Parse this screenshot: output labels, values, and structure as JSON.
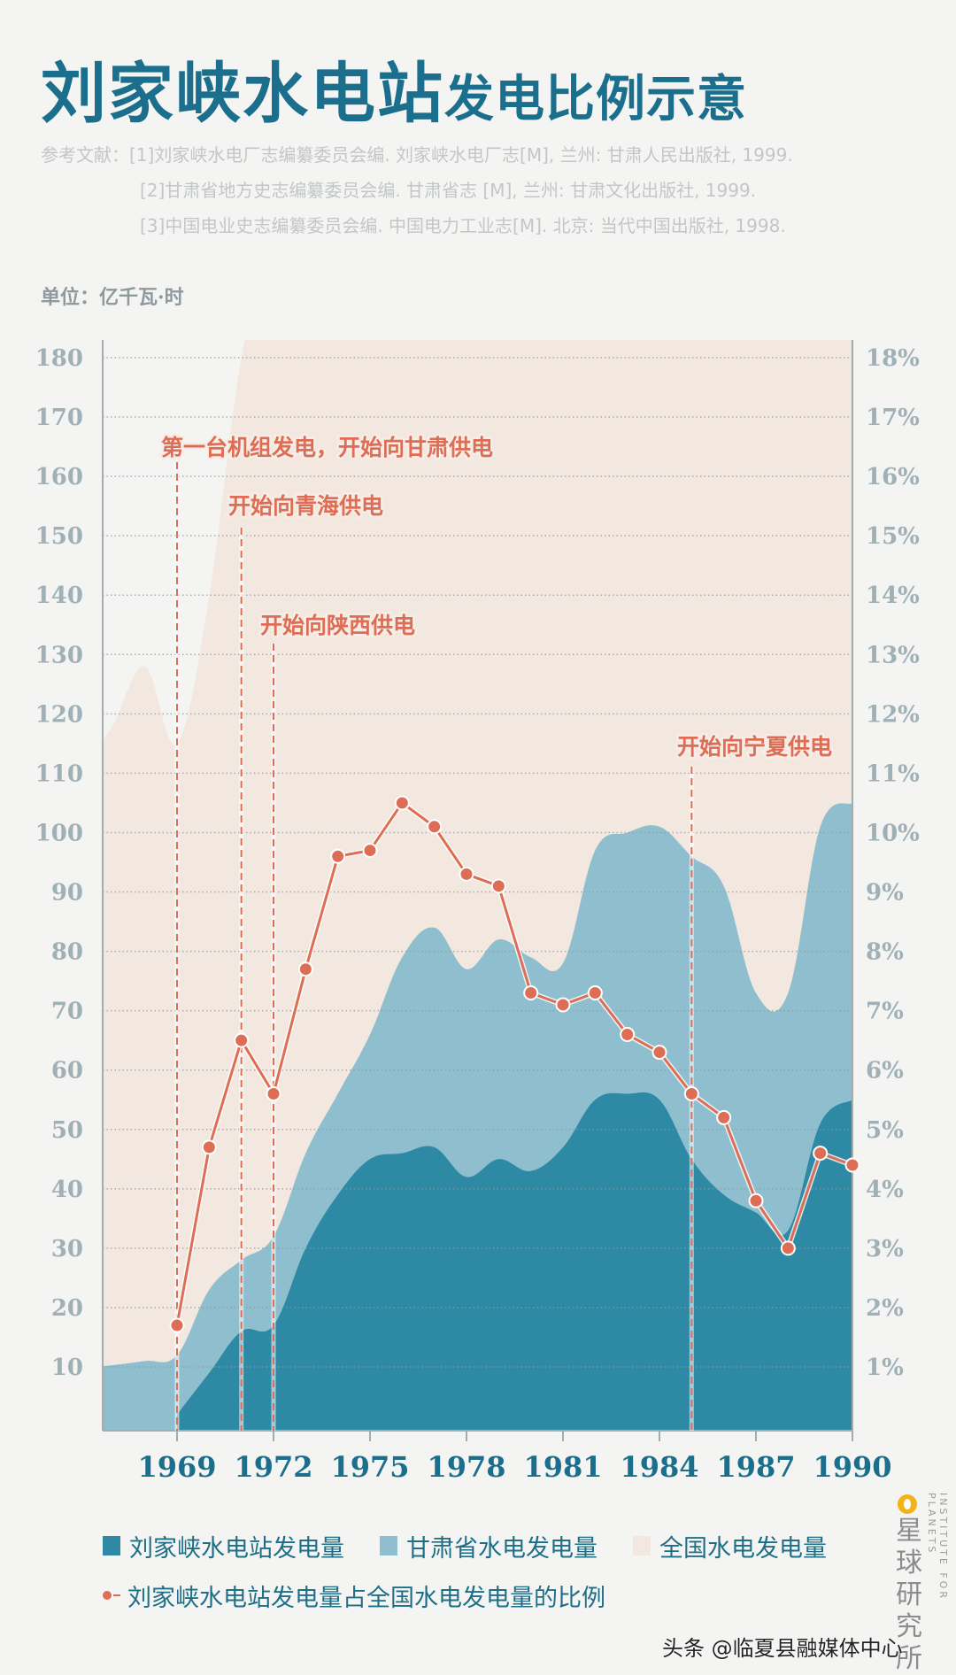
{
  "title": {
    "main": "刘家峡水电站",
    "sub": "发电比例示意"
  },
  "references": {
    "label": "参考文献：",
    "items": [
      "[1]刘家峡水电厂志编纂委员会编. 刘家峡水电厂志[M], 兰州: 甘肃人民出版社, 1999.",
      "[2]甘肃省地方史志编纂委员会编. 甘肃省志 [M], 兰州: 甘肃文化出版社, 1999.",
      "[3]中国电业史志编纂委员会编. 中国电力工业志[M]. 北京: 当代中国出版社, 1998."
    ]
  },
  "unit": "单位：亿千瓦·时",
  "colors": {
    "liujiaxia": "#2e89a5",
    "gansu": "#8fbfcf",
    "national": "#f3e8df",
    "ratio_line": "#de6d55",
    "title": "#1b6f8c",
    "axis_text": "#9fb0b6"
  },
  "chart_data": {
    "type": "area",
    "title": "刘家峡水电站发电比例示意",
    "xlabel": "",
    "ylabel": "亿千瓦·时",
    "y2label": "%",
    "x": [
      1969,
      1970,
      1971,
      1972,
      1973,
      1974,
      1975,
      1976,
      1977,
      1978,
      1979,
      1980,
      1981,
      1982,
      1983,
      1984,
      1985,
      1986,
      1987,
      1988,
      1989,
      1990
    ],
    "x_ticks": [
      "1969",
      "1972",
      "1975",
      "1978",
      "1981",
      "1984",
      "1987",
      "1990"
    ],
    "ylim": [
      0,
      180
    ],
    "y_ticks": [
      10,
      20,
      30,
      40,
      50,
      60,
      70,
      80,
      90,
      100,
      110,
      120,
      130,
      140,
      150,
      160,
      170,
      180
    ],
    "y2lim": [
      0,
      18
    ],
    "y2_ticks": [
      "1%",
      "2%",
      "3%",
      "4%",
      "5%",
      "6%",
      "7%",
      "8%",
      "9%",
      "10%",
      "11%",
      "12%",
      "13%",
      "14%",
      "15%",
      "16%",
      "17%",
      "18%"
    ],
    "grid": true,
    "series": [
      {
        "name": "刘家峡水电站发电量",
        "type": "area",
        "axis": "left",
        "values": [
          2,
          9,
          16,
          17,
          30,
          39,
          45,
          46,
          47,
          42,
          45,
          43,
          47,
          55,
          56,
          55,
          45,
          39,
          36,
          33,
          51,
          55
        ]
      },
      {
        "name": "甘肃省水电发电量",
        "type": "area",
        "axis": "left",
        "values": [
          12,
          23,
          28,
          32,
          46,
          56,
          66,
          79,
          84,
          77,
          82,
          79,
          78,
          97,
          100,
          101,
          96,
          91,
          73,
          73,
          101,
          105
        ]
      },
      {
        "name": "全国水电发电量",
        "type": "area",
        "axis": "left",
        "note": "exceeds 180 after ~1972",
        "values": [
          115,
          140,
          180,
          200,
          200,
          200,
          200,
          200,
          200,
          200,
          200,
          200,
          200,
          200,
          200,
          200,
          200,
          200,
          200,
          200,
          200,
          200
        ]
      },
      {
        "name": "刘家峡水电站发电量占全国水电发电量的比例",
        "type": "line",
        "axis": "right",
        "unit": "%",
        "values": [
          1.7,
          4.7,
          6.5,
          5.6,
          7.7,
          9.6,
          9.7,
          10.5,
          10.1,
          9.3,
          9.1,
          7.3,
          7.1,
          7.3,
          6.6,
          6.3,
          5.6,
          5.2,
          3.8,
          3.0,
          4.6,
          4.4
        ]
      }
    ],
    "annotations": [
      {
        "text": "第一台机组发电，开始向甘肃供电",
        "year": 1969
      },
      {
        "text": "开始向青海供电",
        "year": 1971
      },
      {
        "text": "开始向陕西供电",
        "year": 1972
      },
      {
        "text": "开始向宁夏供电",
        "year": 1985
      }
    ],
    "legend_position": "bottom"
  },
  "legend": {
    "items": [
      {
        "label": "刘家峡水电站发电量"
      },
      {
        "label": "甘肃省水电发电量"
      },
      {
        "label": "全国水电发电量"
      },
      {
        "label": "刘家峡水电站发电量占全国水电发电量的比例"
      }
    ]
  },
  "brand": {
    "cn": "星球研究所",
    "en": "INSTITUTE FOR PLANETS"
  },
  "watermark": "头条 @临夏县融媒体中心"
}
